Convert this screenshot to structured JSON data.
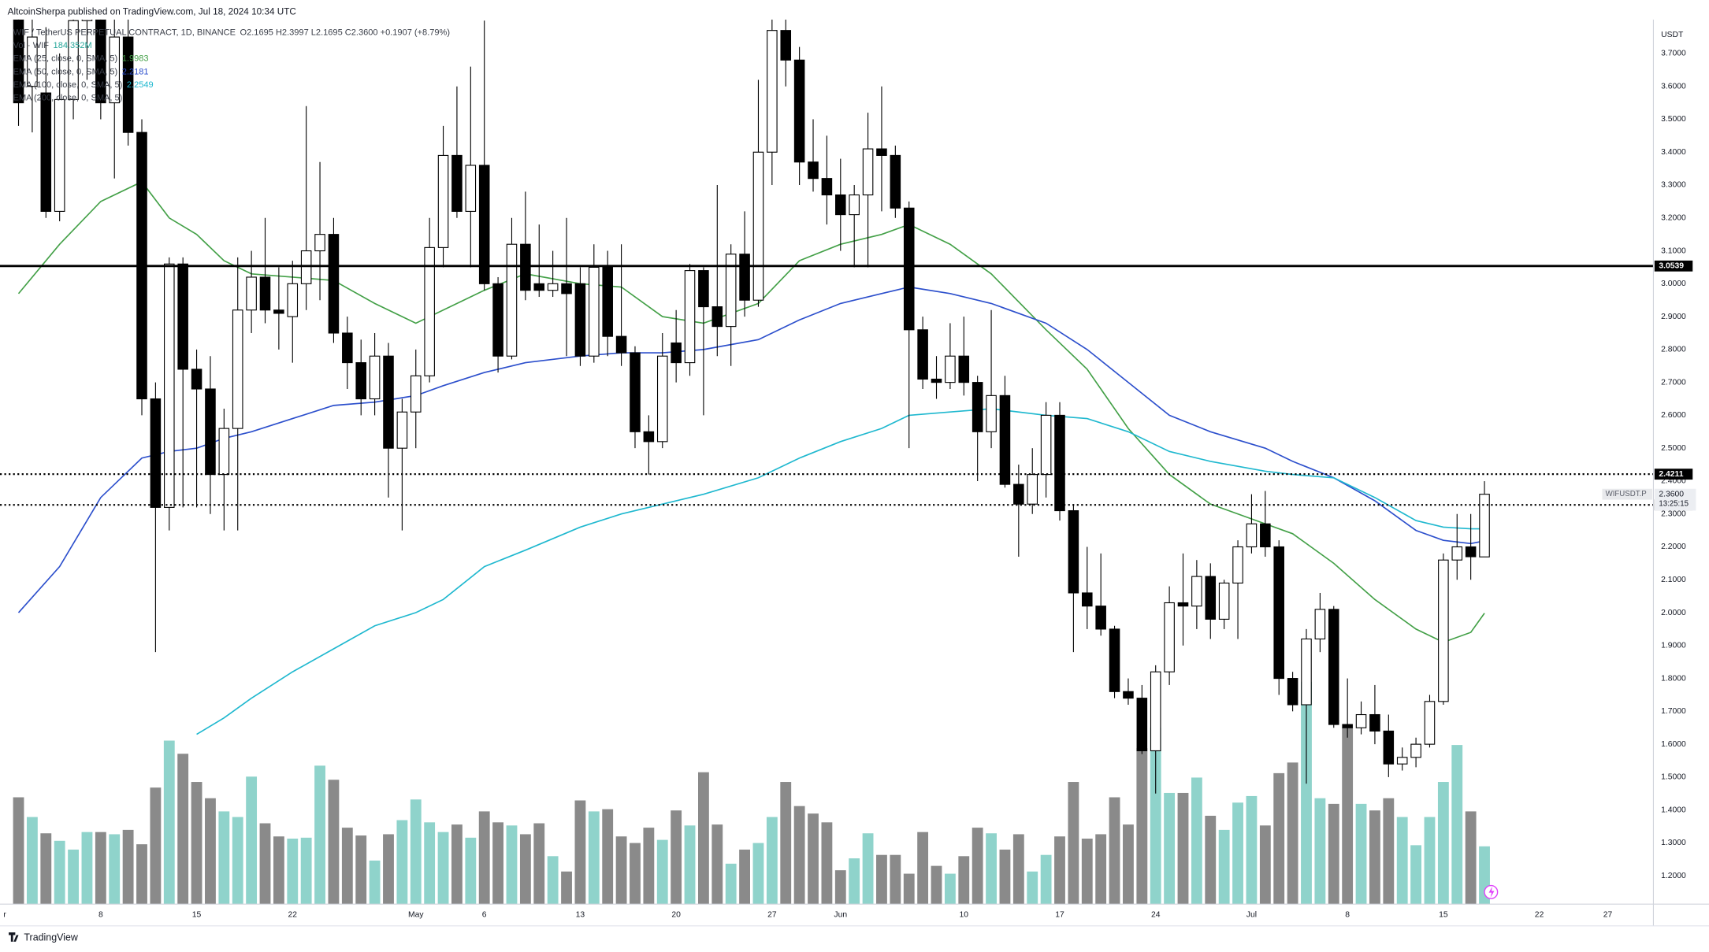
{
  "chart_data": {
    "type": "candlestick",
    "header": "AltcoinSherpa published on TradingView.com, Jul 18, 2024 10:34 UTC",
    "legend": {
      "symbol": "WIF / TetherUS PERPETUAL CONTRACT, 1D, BINANCE",
      "values": "O2.1695 H2.3997 L2.1695 C2.3600 +0.1907 (+8.79%)",
      "extra": "EMA (200, close, 0, SMA, 5)"
    },
    "vol_legend": {
      "name": "Vol · WIF",
      "value_label": "184.352M",
      "color": "#26a69a"
    },
    "axis_unit": "USDT",
    "brand": "TradingView",
    "x": [
      "Apr 2",
      "Apr 3",
      "Apr 4",
      "Apr 5",
      "Apr 6",
      "Apr 7",
      "Apr 8",
      "Apr 9",
      "Apr 10",
      "Apr 11",
      "Apr 12",
      "Apr 13",
      "Apr 14",
      "Apr 15",
      "Apr 16",
      "Apr 17",
      "Apr 18",
      "Apr 19",
      "Apr 20",
      "Apr 21",
      "Apr 22",
      "Apr 23",
      "Apr 24",
      "Apr 25",
      "Apr 26",
      "Apr 27",
      "Apr 28",
      "Apr 29",
      "Apr 30",
      "May 1",
      "May 2",
      "May 3",
      "May 4",
      "May 5",
      "May 6",
      "May 7",
      "May 8",
      "May 9",
      "May 10",
      "May 11",
      "May 12",
      "May 13",
      "May 14",
      "May 15",
      "May 16",
      "May 17",
      "May 18",
      "May 19",
      "May 20",
      "May 21",
      "May 22",
      "May 23",
      "May 24",
      "May 25",
      "May 26",
      "May 27",
      "May 28",
      "May 29",
      "May 30",
      "May 31",
      "Jun 1",
      "Jun 2",
      "Jun 3",
      "Jun 4",
      "Jun 5",
      "Jun 6",
      "Jun 7",
      "Jun 8",
      "Jun 9",
      "Jun 10",
      "Jun 11",
      "Jun 12",
      "Jun 13",
      "Jun 14",
      "Jun 15",
      "Jun 16",
      "Jun 17",
      "Jun 18",
      "Jun 19",
      "Jun 20",
      "Jun 21",
      "Jun 22",
      "Jun 23",
      "Jun 24",
      "Jun 25",
      "Jun 26",
      "Jun 27",
      "Jun 28",
      "Jun 29",
      "Jun 30",
      "Jul 1",
      "Jul 2",
      "Jul 3",
      "Jul 4",
      "Jul 5",
      "Jul 6",
      "Jul 7",
      "Jul 8",
      "Jul 9",
      "Jul 10",
      "Jul 11",
      "Jul 12",
      "Jul 13",
      "Jul 14",
      "Jul 15",
      "Jul 16",
      "Jul 17",
      "Jul 18"
    ],
    "open": [
      3.82,
      3.6,
      3.58,
      3.22,
      3.56,
      3.8,
      3.95,
      3.55,
      3.75,
      3.46,
      2.65,
      2.32,
      3.06,
      2.74,
      2.68,
      2.42,
      2.56,
      2.92,
      3.02,
      2.92,
      2.9,
      3.0,
      3.1,
      3.15,
      2.85,
      2.76,
      2.65,
      2.78,
      2.5,
      2.61,
      2.72,
      3.11,
      3.39,
      3.22,
      3.36,
      3.0,
      2.78,
      3.12,
      3.0,
      2.98,
      3.0,
      3.0,
      2.78,
      3.05,
      2.84,
      2.79,
      2.55,
      2.52,
      2.82,
      2.76,
      3.04,
      2.93,
      2.87,
      3.09,
      2.95,
      3.4,
      3.77,
      3.68,
      3.37,
      3.32,
      3.27,
      3.21,
      3.27,
      3.41,
      3.39,
      3.23,
      2.86,
      2.71,
      2.7,
      2.78,
      2.7,
      2.55,
      2.66,
      2.39,
      2.33,
      2.42,
      2.6,
      2.31,
      2.06,
      2.02,
      1.95,
      1.76,
      1.74,
      1.58,
      1.82,
      2.03,
      2.02,
      2.11,
      1.98,
      2.09,
      2.2,
      2.27,
      2.2,
      1.8,
      1.72,
      1.92,
      2.01,
      1.66,
      1.65,
      1.69,
      1.64,
      1.54,
      1.56,
      1.6,
      1.73,
      2.16,
      2.2,
      2.1695
    ],
    "high": [
      3.9,
      3.9,
      3.78,
      3.7,
      3.95,
      4.0,
      4.0,
      3.85,
      3.9,
      3.5,
      2.7,
      3.08,
      3.08,
      2.8,
      2.78,
      2.62,
      3.08,
      3.1,
      3.2,
      3.05,
      3.07,
      3.54,
      3.37,
      3.2,
      2.9,
      2.83,
      2.85,
      2.82,
      2.65,
      2.8,
      3.2,
      3.48,
      3.6,
      3.66,
      3.8,
      3.02,
      3.2,
      3.28,
      3.18,
      3.1,
      3.2,
      3.05,
      3.12,
      3.1,
      3.12,
      2.81,
      2.6,
      2.85,
      2.92,
      3.06,
      3.05,
      3.3,
      3.12,
      3.22,
      3.62,
      3.85,
      3.85,
      3.72,
      3.5,
      3.45,
      3.38,
      3.3,
      3.52,
      3.6,
      3.42,
      3.25,
      2.9,
      2.78,
      2.88,
      2.9,
      2.72,
      2.92,
      2.72,
      2.45,
      2.5,
      2.64,
      2.64,
      2.33,
      2.2,
      2.18,
      1.96,
      1.8,
      1.78,
      1.84,
      2.08,
      2.18,
      2.16,
      2.15,
      2.1,
      2.22,
      2.36,
      2.37,
      2.22,
      1.82,
      1.95,
      2.06,
      2.02,
      1.8,
      1.73,
      1.78,
      1.69,
      1.59,
      1.62,
      1.75,
      2.18,
      2.3,
      2.3,
      2.3997
    ],
    "low": [
      3.48,
      3.46,
      3.2,
      3.19,
      3.5,
      3.62,
      3.5,
      3.32,
      3.42,
      2.6,
      1.88,
      2.25,
      2.32,
      2.32,
      2.3,
      2.25,
      2.25,
      2.85,
      2.88,
      2.8,
      2.76,
      2.92,
      2.95,
      2.82,
      2.68,
      2.6,
      2.6,
      2.35,
      2.25,
      2.5,
      2.7,
      3.05,
      3.2,
      3.05,
      2.98,
      2.73,
      2.77,
      2.95,
      2.96,
      2.96,
      2.78,
      2.75,
      2.76,
      2.78,
      2.75,
      2.5,
      2.42,
      2.5,
      2.7,
      2.72,
      2.6,
      2.78,
      2.75,
      2.9,
      2.93,
      3.3,
      3.6,
      3.3,
      3.28,
      3.18,
      3.1,
      3.05,
      3.05,
      3.22,
      3.2,
      2.5,
      2.68,
      2.65,
      2.68,
      2.66,
      2.4,
      2.5,
      2.38,
      2.17,
      2.3,
      2.35,
      2.28,
      1.88,
      1.95,
      1.93,
      1.74,
      1.72,
      1.57,
      1.45,
      1.78,
      1.9,
      1.95,
      1.92,
      1.95,
      1.92,
      2.18,
      2.17,
      1.75,
      1.7,
      1.48,
      1.88,
      1.65,
      1.62,
      1.63,
      1.6,
      1.5,
      1.52,
      1.53,
      1.59,
      1.72,
      2.1,
      2.1,
      2.1695
    ],
    "close": [
      3.55,
      3.75,
      3.22,
      3.56,
      3.8,
      3.9,
      3.55,
      3.75,
      3.46,
      2.65,
      2.32,
      3.06,
      2.74,
      2.68,
      2.42,
      2.56,
      2.92,
      3.02,
      2.92,
      2.91,
      3.0,
      3.1,
      3.15,
      2.85,
      2.76,
      2.65,
      2.78,
      2.5,
      2.61,
      2.72,
      3.11,
      3.39,
      3.22,
      3.36,
      3.0,
      2.78,
      3.12,
      2.98,
      2.98,
      3.0,
      2.97,
      2.78,
      3.05,
      2.84,
      2.79,
      2.55,
      2.52,
      2.78,
      2.76,
      3.04,
      2.93,
      2.87,
      3.09,
      2.95,
      3.4,
      3.77,
      3.68,
      3.37,
      3.32,
      3.27,
      3.21,
      3.27,
      3.41,
      3.39,
      3.23,
      2.86,
      2.71,
      2.7,
      2.78,
      2.7,
      2.55,
      2.66,
      2.39,
      2.33,
      2.42,
      2.6,
      2.31,
      2.06,
      2.02,
      1.95,
      1.76,
      1.74,
      1.58,
      1.82,
      2.03,
      2.02,
      2.11,
      1.98,
      2.09,
      2.2,
      2.27,
      2.2,
      1.8,
      1.72,
      1.92,
      2.01,
      1.66,
      1.65,
      1.69,
      1.64,
      1.54,
      1.56,
      1.6,
      1.73,
      2.16,
      2.2,
      2.17,
      2.36
    ],
    "volume": [
      341,
      278,
      226,
      202,
      174,
      230,
      230,
      223,
      237,
      191,
      372,
      522,
      480,
      390,
      338,
      296,
      278,
      407,
      258,
      216,
      209,
      212,
      442,
      397,
      244,
      219,
      139,
      223,
      268,
      334,
      261,
      230,
      254,
      212,
      296,
      261,
      251,
      223,
      258,
      153,
      104,
      331,
      296,
      303,
      216,
      195,
      244,
      205,
      299,
      251,
      421,
      254,
      129,
      174,
      195,
      278,
      390,
      313,
      289,
      261,
      108,
      146,
      226,
      157,
      157,
      97,
      230,
      122,
      97,
      153,
      244,
      226,
      174,
      223,
      104,
      157,
      216,
      390,
      209,
      223,
      341,
      254,
      498,
      564,
      355,
      355,
      404,
      282,
      237,
      324,
      345,
      251,
      418,
      452,
      710,
      338,
      320,
      564,
      320,
      299,
      338,
      278,
      188,
      278,
      390,
      508,
      296,
      184.352
    ],
    "colors": {
      "up": "#ffffff",
      "down": "#000000",
      "outline": "#000000",
      "vol_up": "#8fd3cb",
      "vol_down": "#8a8a8a"
    },
    "lines": [
      {
        "name": "EMA (25, close, 0, SMA, 5)",
        "last_label": "1.9983",
        "color": "#43a047",
        "x": [
          "Apr 2",
          "Apr 5",
          "Apr 8",
          "Apr 11",
          "Apr 13",
          "Apr 15",
          "Apr 17",
          "Apr 19",
          "Apr 22",
          "Apr 25",
          "Apr 28",
          "May 1",
          "May 3",
          "May 6",
          "May 9",
          "May 13",
          "May 16",
          "May 19",
          "May 22",
          "May 26",
          "May 29",
          "Jun 1",
          "Jun 4",
          "Jun 6",
          "Jun 9",
          "Jun 12",
          "Jun 16",
          "Jun 19",
          "Jun 22",
          "Jun 25",
          "Jun 28",
          "Jul 2",
          "Jul 4",
          "Jul 7",
          "Jul 10",
          "Jul 13",
          "Jul 15",
          "Jul 17",
          "Jul 18"
        ],
        "values": [
          2.97,
          3.12,
          3.25,
          3.31,
          3.2,
          3.15,
          3.07,
          3.03,
          3.02,
          3.01,
          2.94,
          2.88,
          2.92,
          2.98,
          3.03,
          3.0,
          2.99,
          2.9,
          2.88,
          2.94,
          3.07,
          3.12,
          3.15,
          3.18,
          3.12,
          3.03,
          2.86,
          2.74,
          2.56,
          2.42,
          2.33,
          2.27,
          2.24,
          2.15,
          2.04,
          1.95,
          1.91,
          1.94,
          1.9983
        ]
      },
      {
        "name": "EMA (50, close, 0, SMA, 5)",
        "last_label": "2.2181",
        "color": "#2c4fcc",
        "x": [
          "Apr 2",
          "Apr 5",
          "Apr 8",
          "Apr 11",
          "Apr 13",
          "Apr 15",
          "Apr 17",
          "Apr 19",
          "Apr 22",
          "Apr 25",
          "Apr 28",
          "May 1",
          "May 3",
          "May 6",
          "May 9",
          "May 13",
          "May 16",
          "May 19",
          "May 22",
          "May 26",
          "May 29",
          "Jun 1",
          "Jun 4",
          "Jun 6",
          "Jun 9",
          "Jun 12",
          "Jun 16",
          "Jun 19",
          "Jun 22",
          "Jun 25",
          "Jun 28",
          "Jul 2",
          "Jul 4",
          "Jul 7",
          "Jul 10",
          "Jul 13",
          "Jul 15",
          "Jul 17",
          "Jul 18"
        ],
        "values": [
          2.0,
          2.14,
          2.35,
          2.47,
          2.49,
          2.5,
          2.53,
          2.55,
          2.59,
          2.63,
          2.64,
          2.66,
          2.69,
          2.73,
          2.76,
          2.78,
          2.79,
          2.79,
          2.8,
          2.83,
          2.89,
          2.94,
          2.97,
          2.99,
          2.97,
          2.94,
          2.88,
          2.8,
          2.7,
          2.6,
          2.55,
          2.5,
          2.46,
          2.41,
          2.34,
          2.25,
          2.22,
          2.21,
          2.2181
        ]
      },
      {
        "name": "EMA (100, close, 0, SMA, 5)",
        "last_label": "2.2549",
        "color": "#1fb8cf",
        "x": [
          "Apr 15",
          "Apr 17",
          "Apr 19",
          "Apr 22",
          "Apr 25",
          "Apr 28",
          "May 1",
          "May 3",
          "May 6",
          "May 9",
          "May 13",
          "May 16",
          "May 19",
          "May 22",
          "May 26",
          "May 29",
          "Jun 1",
          "Jun 4",
          "Jun 6",
          "Jun 9",
          "Jun 12",
          "Jun 16",
          "Jun 19",
          "Jun 22",
          "Jun 25",
          "Jun 28",
          "Jul 2",
          "Jul 4",
          "Jul 7",
          "Jul 10",
          "Jul 13",
          "Jul 15",
          "Jul 17",
          "Jul 18"
        ],
        "values": [
          1.63,
          1.68,
          1.74,
          1.82,
          1.89,
          1.96,
          2.0,
          2.04,
          2.14,
          2.19,
          2.26,
          2.3,
          2.33,
          2.36,
          2.41,
          2.47,
          2.52,
          2.56,
          2.6,
          2.61,
          2.62,
          2.6,
          2.59,
          2.55,
          2.49,
          2.46,
          2.43,
          2.42,
          2.41,
          2.35,
          2.28,
          2.26,
          2.255,
          2.2549
        ]
      }
    ],
    "hlines": [
      {
        "value": 3.0539,
        "style": "solid"
      },
      {
        "value": 2.4211,
        "style": "dotted"
      },
      {
        "value": 2.3276,
        "style": "dotted"
      }
    ],
    "last_price": {
      "symbol": "WIFUSDT.P",
      "value": 2.36,
      "label": "2.3600",
      "countdown": "13:25:15"
    },
    "ylim": [
      1.114,
      3.803
    ],
    "yticks": [
      {
        "value": 1.2,
        "label": "1.2000"
      },
      {
        "value": 1.3,
        "label": "1.3000"
      },
      {
        "value": 1.4,
        "label": "1.4000"
      },
      {
        "value": 1.5,
        "label": "1.5000"
      },
      {
        "value": 1.6,
        "label": "1.6000"
      },
      {
        "value": 1.7,
        "label": "1.7000"
      },
      {
        "value": 1.8,
        "label": "1.8000"
      },
      {
        "value": 1.9,
        "label": "1.9000"
      },
      {
        "value": 2.0,
        "label": "2.0000"
      },
      {
        "value": 2.1,
        "label": "2.1000"
      },
      {
        "value": 2.2,
        "label": "2.2000"
      },
      {
        "value": 2.3,
        "label": "2.3000"
      },
      {
        "value": 2.4,
        "label": "2.4000"
      },
      {
        "value": 2.5,
        "label": "2.5000"
      },
      {
        "value": 2.6,
        "label": "2.6000"
      },
      {
        "value": 2.7,
        "label": "2.7000"
      },
      {
        "value": 2.8,
        "label": "2.8000"
      },
      {
        "value": 2.9,
        "label": "2.9000"
      },
      {
        "value": 3.0,
        "label": "3.0000"
      },
      {
        "value": 3.1,
        "label": "3.1000"
      },
      {
        "value": 3.2,
        "label": "3.2000"
      },
      {
        "value": 3.3,
        "label": "3.3000"
      },
      {
        "value": 3.4,
        "label": "3.4000"
      },
      {
        "value": 3.5,
        "label": "3.5000"
      },
      {
        "value": 3.6,
        "label": "3.6000"
      },
      {
        "value": 3.7,
        "label": "3.7000"
      }
    ],
    "xticks": [
      {
        "value": -1,
        "label": "r"
      },
      {
        "value": 6,
        "label": "8"
      },
      {
        "value": 13,
        "label": "15"
      },
      {
        "value": 20,
        "label": "22"
      },
      {
        "value": 29,
        "label": "May"
      },
      {
        "value": 34,
        "label": "6"
      },
      {
        "value": 41,
        "label": "13"
      },
      {
        "value": 48,
        "label": "20"
      },
      {
        "value": 55,
        "label": "27"
      },
      {
        "value": 60,
        "label": "Jun"
      },
      {
        "value": 69,
        "label": "10"
      },
      {
        "value": 76,
        "label": "17"
      },
      {
        "value": 83,
        "label": "24"
      },
      {
        "value": 90,
        "label": "Jul"
      },
      {
        "value": 97,
        "label": "8"
      },
      {
        "value": 104,
        "label": "15"
      },
      {
        "value": 111,
        "label": "22"
      },
      {
        "value": 116,
        "label": "27"
      }
    ],
    "grid": false
  }
}
